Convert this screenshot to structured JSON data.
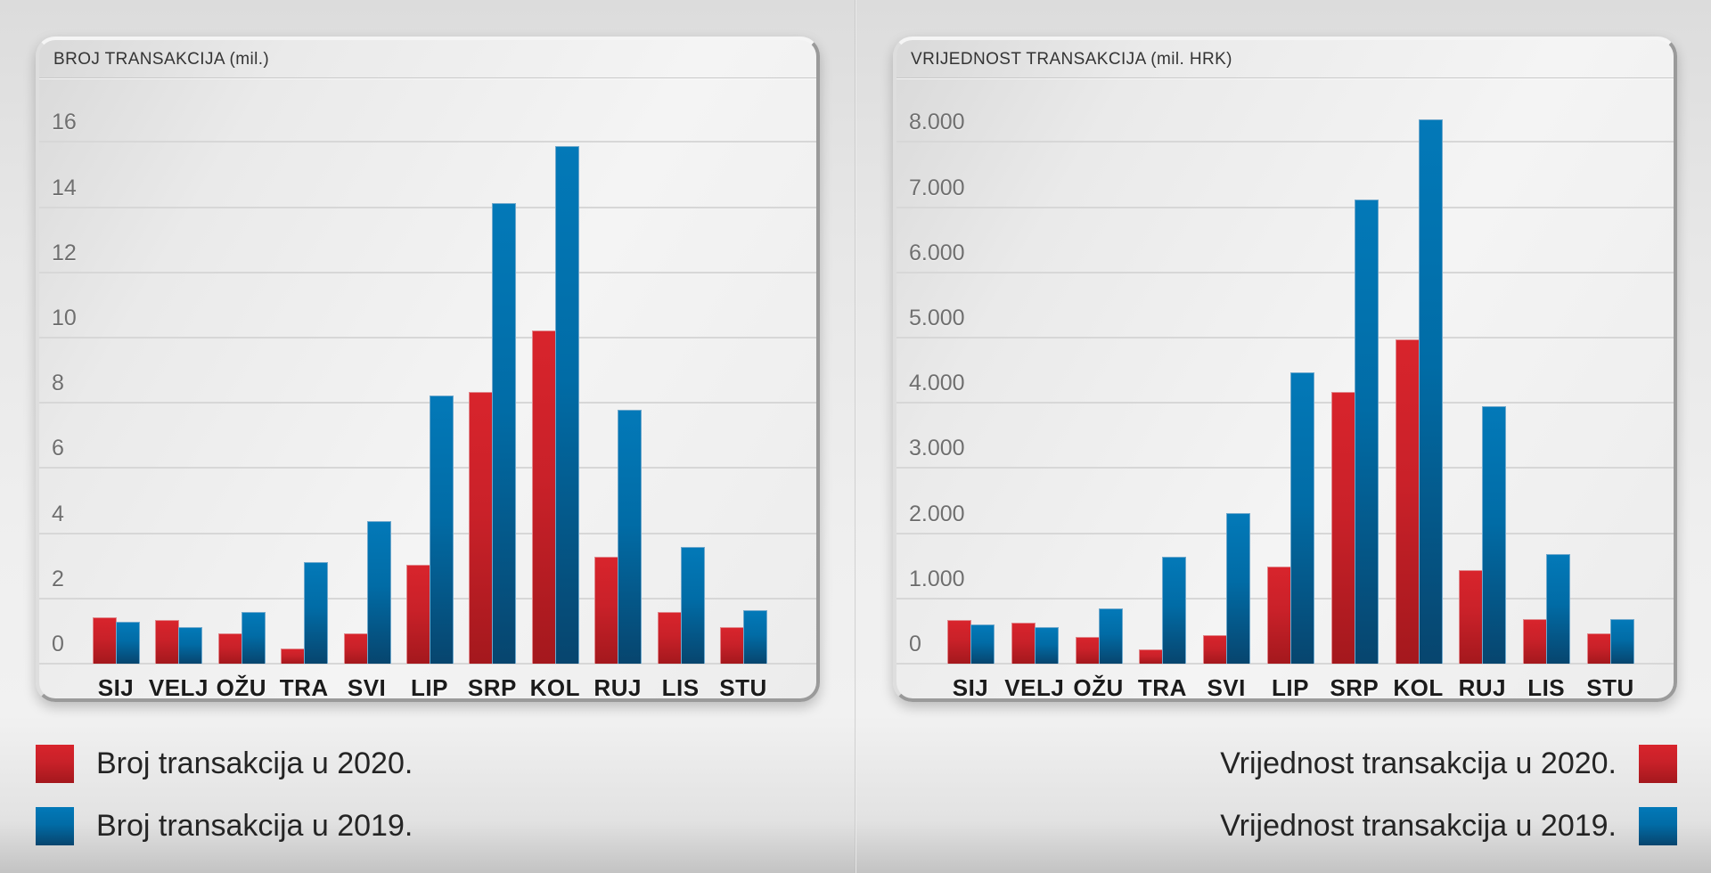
{
  "chart_data": [
    {
      "type": "bar",
      "title": "BROJ TRANSAKCIJA (mil.)",
      "categories": [
        "SIJ",
        "VELJ",
        "OŽU",
        "TRA",
        "SVI",
        "LIP",
        "SRP",
        "KOL",
        "RUJ",
        "LIS",
        "STU"
      ],
      "series": [
        {
          "name": "Broj transakcija u 2020.",
          "year": "2020",
          "color": "red",
          "values": [
            1.4,
            1.3,
            0.9,
            0.45,
            0.9,
            3.0,
            8.3,
            10.2,
            3.25,
            1.55,
            1.1
          ]
        },
        {
          "name": "Broj transakcija u 2019.",
          "year": "2019",
          "color": "blue",
          "values": [
            1.25,
            1.1,
            1.55,
            3.1,
            4.35,
            8.2,
            14.1,
            15.85,
            7.75,
            3.55,
            1.6
          ]
        }
      ],
      "xlabel": "",
      "ylabel": "BROJ TRANSAKCIJA (mil.)",
      "ylim": [
        0,
        16
      ],
      "y_tick_step": 2,
      "y_tick_labels": [
        "0",
        "2",
        "4",
        "6",
        "8",
        "10",
        "12",
        "14",
        "16"
      ],
      "grid": "horizontal",
      "legend_position": "bottom-left"
    },
    {
      "type": "bar",
      "title": "VRIJEDNOST TRANSAKCIJA (mil. HRK)",
      "categories": [
        "SIJ",
        "VELJ",
        "OŽU",
        "TRA",
        "SVI",
        "LIP",
        "SRP",
        "KOL",
        "RUJ",
        "LIS",
        "STU"
      ],
      "series": [
        {
          "name": "Vrijednost transakcija u 2020.",
          "year": "2020",
          "color": "red",
          "values": [
            660,
            610,
            390,
            210,
            430,
            1470,
            4150,
            4960,
            1420,
            670,
            450
          ]
        },
        {
          "name": "Vrijednost transakcija u 2019.",
          "year": "2019",
          "color": "blue",
          "values": [
            590,
            540,
            830,
            1620,
            2290,
            4450,
            7110,
            8340,
            3930,
            1660,
            670
          ]
        }
      ],
      "xlabel": "",
      "ylabel": "VRIJEDNOST TRANSAKCIJA (mil. HRK)",
      "ylim": [
        0,
        8000
      ],
      "y_tick_step": 1000,
      "y_tick_labels": [
        "0",
        "1.000",
        "2.000",
        "3.000",
        "4.000",
        "5.000",
        "6.000",
        "7.000",
        "8.000"
      ],
      "grid": "horizontal",
      "legend_position": "bottom-right"
    }
  ],
  "colors": {
    "red_top": "#d8242c",
    "red_mid": "#c92129",
    "red_bottom": "#a4181d",
    "red_edge": "#e0878b",
    "blue_top": "#0379b8",
    "blue_mid": "#016ca6",
    "blue_bottom": "#07456e",
    "blue_edge": "#6fa8cc",
    "gridline": "#d7d7d7",
    "panel_border_dark": "#9a9a9a",
    "panel_border_light": "#f5f5f5",
    "title_text": "#343434",
    "y_axis_text": "#6f6f6f",
    "month_text": "#1b1b1b",
    "legend_text": "#242424"
  }
}
